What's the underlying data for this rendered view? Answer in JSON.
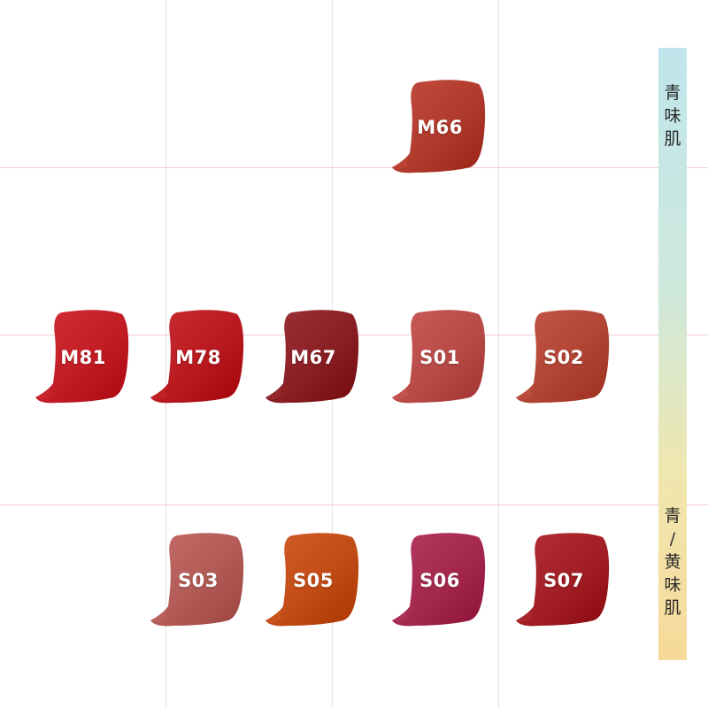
{
  "swatches": [
    {
      "label": "M66",
      "color": "#b03a2c",
      "row": 0,
      "col": 3
    },
    {
      "label": "M81",
      "color": "#c21c25",
      "row": 1,
      "col": 0
    },
    {
      "label": "M78",
      "color": "#b81a20",
      "row": 1,
      "col": 1
    },
    {
      "label": "M67",
      "color": "#8a1f24",
      "row": 1,
      "col": 2
    },
    {
      "label": "S01",
      "color": "#b84a48",
      "row": 1,
      "col": 3
    },
    {
      "label": "S02",
      "color": "#b24535",
      "row": 1,
      "col": 4
    },
    {
      "label": "S03",
      "color": "#b25a55",
      "row": 2,
      "col": 1
    },
    {
      "label": "S05",
      "color": "#c24c16",
      "row": 2,
      "col": 2
    },
    {
      "label": "S06",
      "color": "#a4284e",
      "row": 2,
      "col": 3
    },
    {
      "label": "S07",
      "color": "#a01e24",
      "row": 2,
      "col": 4
    }
  ],
  "scale": {
    "top_label": "青味肌",
    "bottom_label": "青/黄味肌",
    "colors": [
      "#bfe6ec",
      "#f7d99a"
    ]
  }
}
